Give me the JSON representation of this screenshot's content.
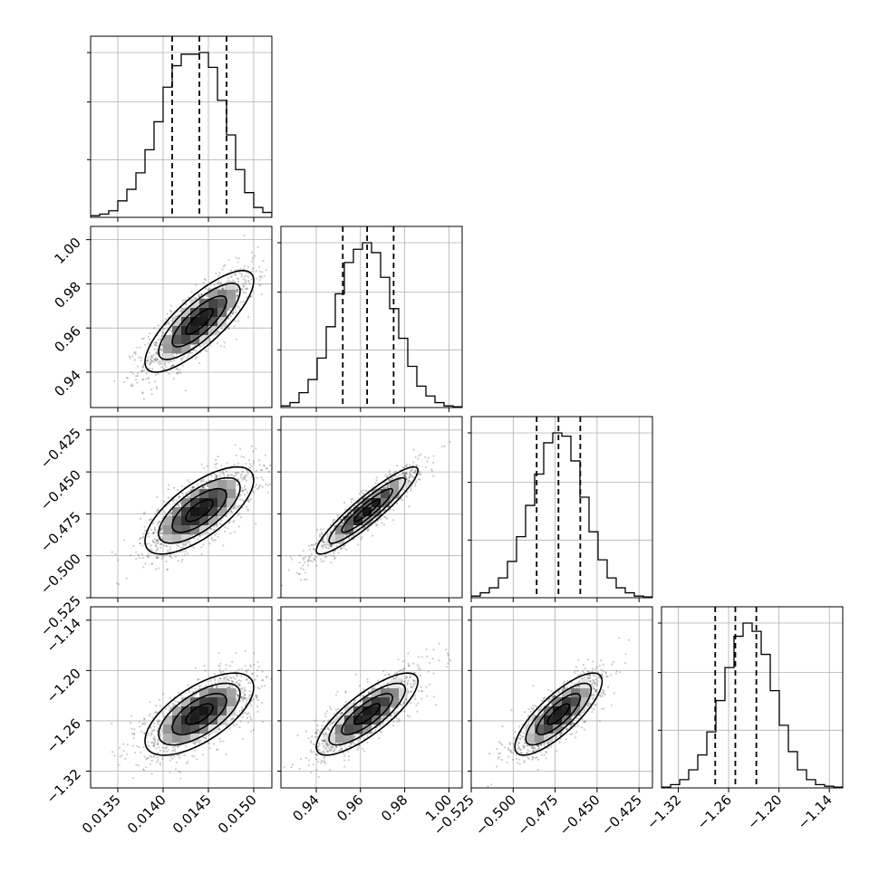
{
  "chart_data": {
    "type": "corner",
    "grid": true,
    "parameters": [
      {
        "range": [
          0.0132,
          0.0152
        ],
        "ticks": [
          0.0135,
          0.014,
          0.0145,
          0.015
        ],
        "tick_labels": [
          "0.0135",
          "0.0140",
          "0.0145",
          "0.0150"
        ],
        "quantiles": [
          0.0141,
          0.0144,
          0.0147
        ],
        "hist_density": [
          0.01,
          0.02,
          0.04,
          0.1,
          0.17,
          0.27,
          0.41,
          0.58,
          0.79,
          0.92,
          0.99,
          0.99,
          1.0,
          0.91,
          0.71,
          0.5,
          0.29,
          0.15,
          0.06,
          0.03
        ]
      },
      {
        "range": [
          0.924,
          1.006
        ],
        "ticks": [
          0.94,
          0.96,
          0.98,
          1.0
        ],
        "tick_labels": [
          "0.94",
          "0.96",
          "0.98",
          "1.00"
        ],
        "quantiles": [
          0.952,
          0.963,
          0.975
        ],
        "hist_density": [
          0.01,
          0.03,
          0.09,
          0.17,
          0.3,
          0.49,
          0.69,
          0.88,
          0.96,
          1.0,
          0.94,
          0.79,
          0.6,
          0.42,
          0.25,
          0.13,
          0.07,
          0.03,
          0.01,
          0.005
        ]
      },
      {
        "range": [
          -0.525,
          -0.417
        ],
        "ticks": [
          -0.525,
          -0.5,
          -0.475,
          -0.45,
          -0.425
        ],
        "tick_labels": [
          "−0.525",
          "−0.500",
          "−0.475",
          "−0.450",
          "−0.425"
        ],
        "quantiles": [
          -0.486,
          -0.473,
          -0.46
        ],
        "hist_density": [
          0.01,
          0.03,
          0.06,
          0.12,
          0.22,
          0.37,
          0.56,
          0.75,
          0.94,
          1.0,
          0.98,
          0.83,
          0.61,
          0.4,
          0.23,
          0.12,
          0.06,
          0.03,
          0.01,
          0.005
        ]
      },
      {
        "range": [
          -1.34,
          -1.124
        ],
        "ticks": [
          -1.32,
          -1.26,
          -1.2,
          -1.14
        ],
        "tick_labels": [
          "−1.32",
          "−1.26",
          "−1.20",
          "−1.14"
        ],
        "quantiles": [
          -1.276,
          -1.252,
          -1.227
        ],
        "hist_density": [
          0.005,
          0.02,
          0.05,
          0.11,
          0.2,
          0.34,
          0.53,
          0.73,
          0.92,
          1.0,
          0.95,
          0.81,
          0.59,
          0.38,
          0.22,
          0.11,
          0.05,
          0.02,
          0.01,
          0.005
        ]
      }
    ],
    "correlations": [
      [
        1.0,
        0.8,
        0.7,
        0.65
      ],
      [
        0.8,
        1.0,
        0.92,
        0.8
      ],
      [
        0.7,
        0.92,
        1.0,
        0.8
      ],
      [
        0.65,
        0.8,
        0.8,
        1.0
      ]
    ],
    "contour_levels_sigma": [
      0.5,
      1.0,
      1.5,
      2.0
    ]
  }
}
